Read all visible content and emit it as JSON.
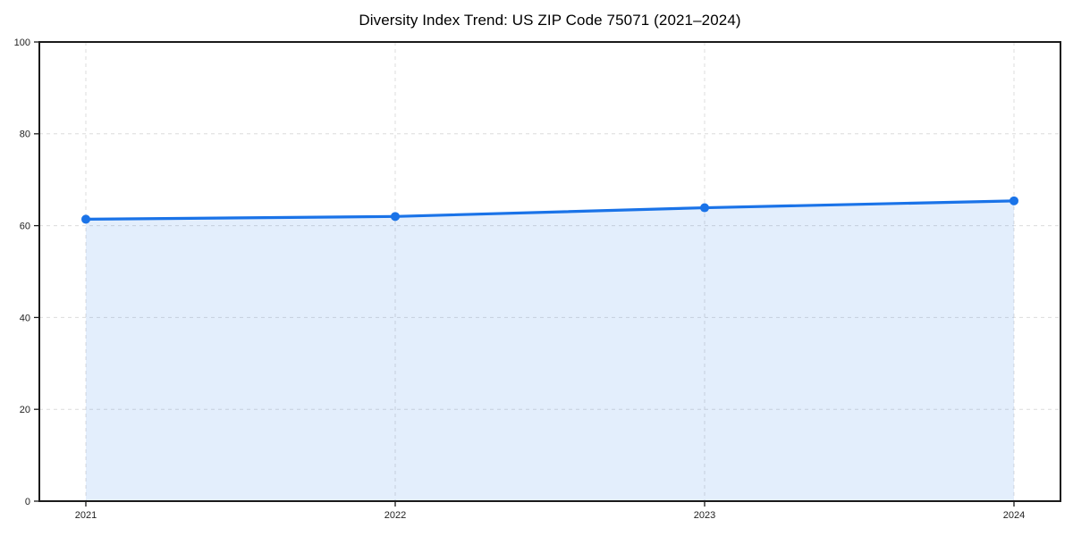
{
  "chart_data": {
    "type": "line",
    "title": "Diversity Index Trend: US ZIP Code 75071 (2021–2024)",
    "categories": [
      "2021",
      "2022",
      "2023",
      "2024"
    ],
    "series": [
      {
        "name": "Diversity Index",
        "values": [
          61.4,
          62.0,
          63.9,
          65.4
        ]
      }
    ],
    "xlabel": "",
    "ylabel": "",
    "ylim": [
      0,
      100
    ],
    "yticks": [
      0,
      20,
      40,
      60,
      80,
      100
    ],
    "grid": "dashed",
    "legend_position": "none",
    "area_fill_to": 0,
    "colors": {
      "line": "#1a73e8",
      "marker": "#1a73e8",
      "fill": "rgba(26,115,232,0.12)",
      "grid": "#dcdcdc",
      "spine": "#1a1a1a",
      "tick": "#1a1a1a",
      "tick_label": "#222222",
      "title": "#000000",
      "background": "#ffffff"
    }
  }
}
